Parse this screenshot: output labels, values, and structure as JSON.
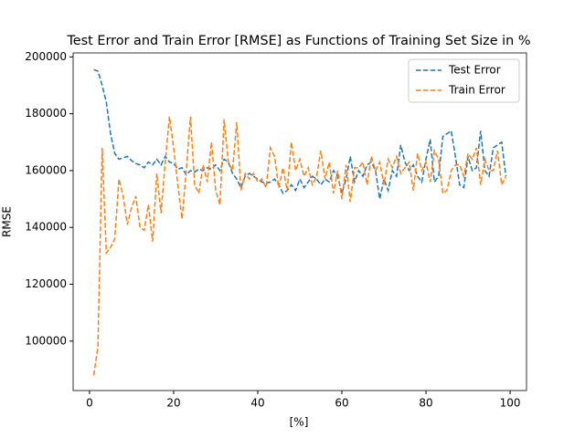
{
  "chart_data": {
    "type": "line",
    "title": "Test Error and Train Error [RMSE] as Functions of Training Set Size in %",
    "x_label": "[%]",
    "y_label": "RMSE",
    "x": [
      1,
      2,
      3,
      4,
      5,
      6,
      7,
      8,
      9,
      10,
      11,
      12,
      13,
      14,
      15,
      16,
      17,
      18,
      19,
      20,
      21,
      22,
      23,
      24,
      25,
      26,
      27,
      28,
      29,
      30,
      31,
      32,
      33,
      34,
      35,
      36,
      37,
      38,
      39,
      40,
      41,
      42,
      43,
      44,
      45,
      46,
      47,
      48,
      49,
      50,
      51,
      52,
      53,
      54,
      55,
      56,
      57,
      58,
      59,
      60,
      61,
      62,
      63,
      64,
      65,
      66,
      67,
      68,
      69,
      70,
      71,
      72,
      73,
      74,
      75,
      76,
      77,
      78,
      79,
      80,
      81,
      82,
      83,
      84,
      85,
      86,
      87,
      88,
      89,
      90,
      91,
      92,
      93,
      94,
      95,
      96,
      97,
      98,
      99
    ],
    "series": [
      {
        "name": "Test Error",
        "color": "#1f77b4",
        "values": [
          195500,
          195000,
          190000,
          184000,
          173000,
          166000,
          164000,
          164500,
          165000,
          163500,
          162500,
          162000,
          161000,
          163000,
          162000,
          164000,
          162000,
          165000,
          163000,
          162500,
          160500,
          161000,
          158500,
          160000,
          159500,
          160500,
          160000,
          161000,
          160500,
          162000,
          160000,
          164000,
          163000,
          159000,
          157000,
          154000,
          158000,
          159000,
          158000,
          157000,
          156000,
          155500,
          156000,
          157000,
          155000,
          152000,
          153000,
          155000,
          153000,
          157000,
          154000,
          156000,
          158000,
          157000,
          155000,
          157000,
          156000,
          160000,
          158000,
          152000,
          157000,
          165000,
          156000,
          160000,
          158000,
          162000,
          163000,
          160000,
          150000,
          157000,
          153000,
          160000,
          158000,
          169000,
          163000,
          160000,
          162000,
          158000,
          156000,
          164000,
          171000,
          156000,
          158000,
          172000,
          173000,
          174000,
          165000,
          155000,
          154000,
          165000,
          160000,
          161000,
          174000,
          160000,
          158000,
          168000,
          169000,
          170000,
          158000
        ]
      },
      {
        "name": "Train Error",
        "color": "#ff7f0e",
        "values": [
          88000,
          98000,
          168000,
          131000,
          133000,
          136000,
          157000,
          151000,
          141000,
          147000,
          151000,
          140000,
          139000,
          148000,
          135000,
          159000,
          145000,
          163000,
          179000,
          168000,
          155000,
          143000,
          160000,
          179000,
          155000,
          152000,
          162000,
          156000,
          170000,
          153000,
          148000,
          178000,
          163000,
          160000,
          177000,
          153000,
          159000,
          157000,
          159000,
          156000,
          157000,
          154000,
          168000,
          165000,
          154000,
          161000,
          153000,
          170000,
          160000,
          164000,
          158000,
          161000,
          155000,
          158000,
          167000,
          157000,
          163000,
          152000,
          160000,
          150000,
          162000,
          149000,
          161000,
          161000,
          163000,
          155000,
          165000,
          160000,
          163000,
          155000,
          164000,
          161000,
          165000,
          159000,
          161000,
          163000,
          153000,
          166000,
          160000,
          163000,
          156000,
          167000,
          164000,
          152000,
          153000,
          160000,
          162000,
          162000,
          158000,
          166000,
          164000,
          168000,
          155000,
          164000,
          160000,
          160000,
          167000,
          155000,
          158000
        ]
      }
    ],
    "xlim": [
      -3.9,
      103.9
    ],
    "xticks": [
      0,
      20,
      40,
      60,
      80,
      100
    ],
    "ylim": [
      82600,
      201400
    ],
    "yticks": [
      100000,
      120000,
      140000,
      160000,
      180000,
      200000
    ],
    "line_style": "dashed",
    "legend": "upper right"
  }
}
